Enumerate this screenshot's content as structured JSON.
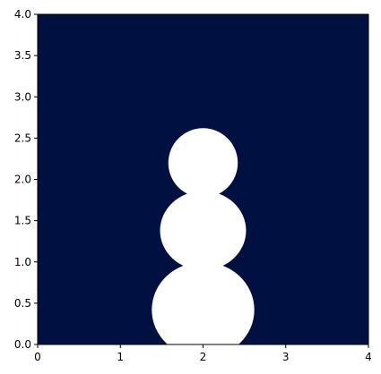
{
  "chart_data": {
    "type": "scatter",
    "title": "",
    "xlabel": "",
    "ylabel": "",
    "xlim": [
      0,
      4
    ],
    "ylim": [
      0,
      4
    ],
    "xticks": [
      "0",
      "1",
      "2",
      "3",
      "4"
    ],
    "yticks": [
      "0.0",
      "0.5",
      "1.0",
      "1.5",
      "2.0",
      "2.5",
      "3.0",
      "3.5",
      "4.0"
    ],
    "grid": false,
    "legend": "none",
    "background_color": "#001040",
    "shape_color": "#ffffff",
    "shapes": [
      {
        "name": "bottom-circle",
        "cx": 2.0,
        "cy": 0.42,
        "rx": 0.62,
        "ry": 0.58
      },
      {
        "name": "middle-circle",
        "cx": 2.0,
        "cy": 1.38,
        "rx": 0.52,
        "ry": 0.48
      },
      {
        "name": "top-circle",
        "cx": 2.0,
        "cy": 2.2,
        "rx": 0.42,
        "ry": 0.42
      }
    ]
  }
}
